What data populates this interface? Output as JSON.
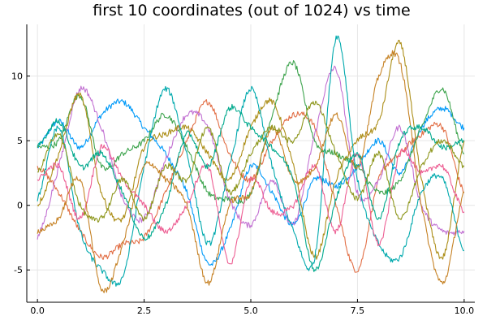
{
  "chart_data": {
    "type": "line",
    "title": "first 10 coordinates (out of 1024) vs time",
    "xlabel": "",
    "ylabel": "",
    "xlim": [
      -0.25,
      10.25
    ],
    "ylim": [
      -7.5,
      14
    ],
    "xticks": [
      0.0,
      2.5,
      5.0,
      7.5,
      10.0
    ],
    "xtick_labels": [
      "0.0",
      "2.5",
      "5.0",
      "7.5",
      "10.0"
    ],
    "yticks": [
      -5,
      0,
      5,
      10
    ],
    "ytick_labels": [
      "-5",
      "0",
      "5",
      "10"
    ],
    "grid": true,
    "legend": "none",
    "x": [
      0,
      0.5,
      1,
      1.5,
      2,
      2.5,
      3,
      3.5,
      4,
      4.5,
      5,
      5.5,
      6,
      6.5,
      7,
      7.5,
      8,
      8.5,
      9,
      9.5,
      10
    ],
    "series": [
      {
        "color": "#009af9",
        "values": [
          4.5,
          6.5,
          4.5,
          7.0,
          8.0,
          6.0,
          4.0,
          1.0,
          -4.5,
          -2.0,
          3.0,
          1.0,
          -1.5,
          2.0,
          1.5,
          3.0,
          5.0,
          2.5,
          6.0,
          7.5,
          6.0
        ]
      },
      {
        "color": "#e26f46",
        "values": [
          3.0,
          1.0,
          -2.0,
          -4.0,
          -3.0,
          -2.5,
          1.0,
          5.0,
          8.0,
          4.0,
          2.0,
          5.0,
          7.0,
          6.0,
          0.0,
          -5.0,
          2.0,
          4.0,
          5.5,
          6.0,
          1.0
        ]
      },
      {
        "color": "#3ea44e",
        "values": [
          4.5,
          5.0,
          8.5,
          3.0,
          4.0,
          5.0,
          7.0,
          4.5,
          1.0,
          0.5,
          1.0,
          7.0,
          11.0,
          5.0,
          4.0,
          3.0,
          1.0,
          2.0,
          6.0,
          9.0,
          4.0
        ]
      },
      {
        "color": "#c271d2",
        "values": [
          -2.5,
          3.0,
          9.0,
          6.0,
          0.5,
          -1.0,
          3.5,
          7.0,
          6.0,
          0.5,
          -1.5,
          2.0,
          -1.5,
          5.5,
          10.5,
          1.0,
          2.0,
          6.0,
          0.0,
          -2.0,
          -2.0
        ]
      },
      {
        "color": "#ac8e18",
        "values": [
          0.0,
          4.0,
          8.5,
          1.0,
          -1.0,
          4.5,
          5.5,
          6.0,
          4.0,
          2.0,
          6.0,
          8.0,
          3.0,
          -4.0,
          2.0,
          5.0,
          6.5,
          12.5,
          2.0,
          -4.0,
          5.0
        ]
      },
      {
        "color": "#00a9ad",
        "values": [
          0.5,
          6.0,
          -2.0,
          -5.0,
          -5.5,
          3.0,
          9.0,
          4.0,
          -3.0,
          3.0,
          9.0,
          3.0,
          -2.0,
          -4.0,
          13.0,
          2.0,
          -3.0,
          -4.0,
          1.0,
          2.0,
          -3.5
        ]
      },
      {
        "color": "#ed5e93",
        "values": [
          2.0,
          3.0,
          -1.0,
          4.5,
          2.0,
          0.0,
          -2.0,
          0.0,
          3.0,
          -4.5,
          2.0,
          -0.5,
          0.0,
          3.0,
          -2.0,
          4.0,
          -3.0,
          4.0,
          2.5,
          3.0,
          -0.5
        ]
      },
      {
        "color": "#c68225",
        "values": [
          -2.0,
          -1.0,
          2.0,
          -6.5,
          -3.0,
          3.0,
          2.0,
          0.0,
          -6.0,
          0.0,
          1.0,
          6.0,
          2.0,
          3.0,
          7.0,
          3.0,
          10.0,
          11.0,
          0.0,
          -6.0,
          1.0
        ]
      },
      {
        "color": "#00a98d",
        "values": [
          4.5,
          6.5,
          3.0,
          4.0,
          1.0,
          -2.5,
          0.0,
          5.5,
          3.0,
          7.5,
          6.0,
          4.5,
          2.0,
          -5.0,
          0.5,
          4.0,
          -1.0,
          5.0,
          6.0,
          4.5,
          5.0
        ]
      },
      {
        "color": "#8e971d",
        "values": [
          2.5,
          5.5,
          0.0,
          -1.0,
          2.0,
          -1.0,
          3.0,
          2.0,
          6.0,
          1.0,
          4.0,
          6.0,
          5.0,
          8.0,
          4.0,
          0.5,
          4.0,
          -1.0,
          3.0,
          5.0,
          3.0
        ]
      }
    ]
  }
}
